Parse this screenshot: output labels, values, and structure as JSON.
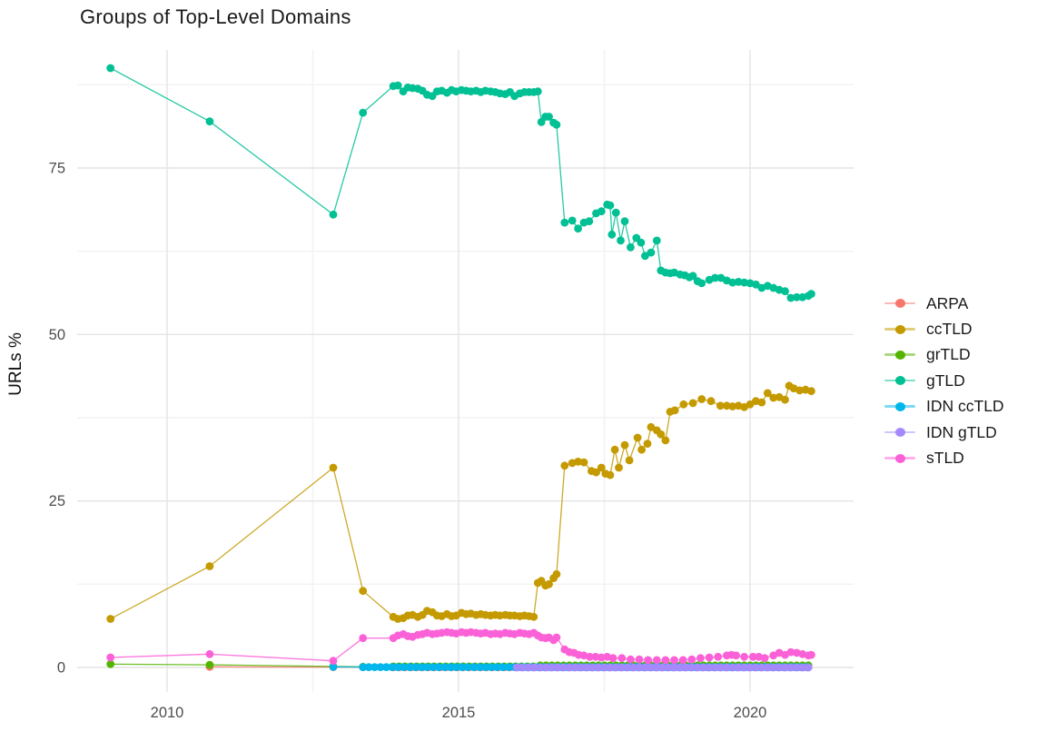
{
  "page": {
    "title": "Groups of Top-Level Domains"
  },
  "chart_data": {
    "type": "line",
    "title": "Groups of Top-Level Domains",
    "xlabel": "",
    "ylabel": "URLs %",
    "xlim": [
      2008.5,
      2021.8
    ],
    "ylim": [
      -3.5,
      92.7
    ],
    "grid": true,
    "legend_position": "right",
    "x_ticks": [
      {
        "value": 2010,
        "label": "2010"
      },
      {
        "value": 2015,
        "label": "2015"
      },
      {
        "value": 2020,
        "label": "2020"
      }
    ],
    "y_ticks": [
      {
        "value": 0,
        "label": "0"
      },
      {
        "value": 25,
        "label": "25"
      },
      {
        "value": 50,
        "label": "50"
      },
      {
        "value": 75,
        "label": "75"
      }
    ],
    "x_minor": [
      2012.5,
      2017.5
    ],
    "y_minor": [
      12.5,
      37.5,
      62.5,
      87.5
    ],
    "series": [
      {
        "name": "ARPA",
        "color": "#F8766D",
        "points": [
          [
            2010.73,
            0.1
          ],
          [
            2012.85,
            0.05
          ],
          [
            2013.36,
            0.05
          ]
        ],
        "runs": [
          {
            "from": 2013.88,
            "to": 2021.05,
            "step": 0.1,
            "y": 0.03
          }
        ]
      },
      {
        "name": "ccTLD",
        "color": "#C49A00",
        "points": [
          [
            2009.03,
            7.3
          ],
          [
            2010.73,
            15.2
          ],
          [
            2012.85,
            30
          ],
          [
            2013.36,
            11.5
          ],
          [
            2013.88,
            7.6
          ],
          [
            2013.96,
            7.3
          ],
          [
            2014.05,
            7.4
          ],
          [
            2014.13,
            7.8
          ],
          [
            2014.21,
            7.9
          ],
          [
            2014.3,
            7.6
          ],
          [
            2014.38,
            7.9
          ],
          [
            2014.46,
            8.5
          ],
          [
            2014.55,
            8.3
          ],
          [
            2014.63,
            7.8
          ],
          [
            2014.71,
            7.7
          ],
          [
            2014.8,
            8
          ],
          [
            2014.88,
            7.7
          ],
          [
            2014.96,
            7.8
          ],
          [
            2015.05,
            8.2
          ],
          [
            2015.13,
            8
          ],
          [
            2015.21,
            8.1
          ],
          [
            2015.3,
            7.9
          ],
          [
            2015.38,
            8
          ],
          [
            2015.46,
            7.9
          ],
          [
            2015.55,
            7.8
          ],
          [
            2015.63,
            7.9
          ],
          [
            2015.71,
            7.8
          ],
          [
            2015.8,
            7.9
          ],
          [
            2015.88,
            7.8
          ],
          [
            2015.96,
            7.8
          ],
          [
            2016.05,
            7.7
          ],
          [
            2016.13,
            7.8
          ],
          [
            2016.21,
            7.7
          ],
          [
            2016.29,
            7.6
          ],
          [
            2016.36,
            12.7
          ],
          [
            2016.42,
            13
          ],
          [
            2016.49,
            12.3
          ],
          [
            2016.55,
            12.5
          ],
          [
            2016.63,
            13.4
          ],
          [
            2016.68,
            14
          ],
          [
            2016.82,
            30.3
          ],
          [
            2016.95,
            30.7
          ],
          [
            2017.05,
            30.9
          ],
          [
            2017.15,
            30.8
          ],
          [
            2017.28,
            29.5
          ],
          [
            2017.36,
            29.3
          ],
          [
            2017.45,
            30
          ],
          [
            2017.52,
            29.1
          ],
          [
            2017.6,
            28.9
          ],
          [
            2017.68,
            32.7
          ],
          [
            2017.75,
            30
          ],
          [
            2017.85,
            33.4
          ],
          [
            2017.93,
            31.1
          ],
          [
            2018.07,
            34.5
          ],
          [
            2018.14,
            32.7
          ],
          [
            2018.24,
            33.6
          ],
          [
            2018.3,
            36.1
          ],
          [
            2018.4,
            35.6
          ],
          [
            2018.47,
            35
          ],
          [
            2018.55,
            34.1
          ],
          [
            2018.63,
            38.4
          ],
          [
            2018.71,
            38.6
          ],
          [
            2018.86,
            39.5
          ],
          [
            2019.02,
            39.7
          ],
          [
            2019.17,
            40.3
          ],
          [
            2019.33,
            40
          ],
          [
            2019.49,
            39.3
          ],
          [
            2019.6,
            39.3
          ],
          [
            2019.7,
            39.2
          ],
          [
            2019.8,
            39.3
          ],
          [
            2019.9,
            39.1
          ],
          [
            2020,
            39.5
          ],
          [
            2020.1,
            40
          ],
          [
            2020.2,
            39.8
          ],
          [
            2020.3,
            41.2
          ],
          [
            2020.4,
            40.5
          ],
          [
            2020.5,
            40.6
          ],
          [
            2020.6,
            40.2
          ],
          [
            2020.67,
            42.3
          ],
          [
            2020.75,
            41.9
          ],
          [
            2020.85,
            41.6
          ],
          [
            2020.95,
            41.7
          ],
          [
            2021.05,
            41.5
          ]
        ],
        "runs": []
      },
      {
        "name": "grTLD",
        "color": "#53B400",
        "points": [
          [
            2009.03,
            0.5
          ],
          [
            2010.73,
            0.4
          ],
          [
            2012.85,
            0.15
          ],
          [
            2013.36,
            0.1
          ]
        ],
        "runs": [
          {
            "from": 2013.88,
            "to": 2016.3,
            "step": 0.1,
            "y": 0.15
          },
          {
            "from": 2016.4,
            "to": 2021.05,
            "step": 0.1,
            "y": 0.3
          }
        ]
      },
      {
        "name": "gTLD",
        "color": "#00C094",
        "points": [
          [
            2009.03,
            90
          ],
          [
            2010.73,
            82
          ],
          [
            2012.85,
            68
          ],
          [
            2013.36,
            83.3
          ],
          [
            2013.88,
            87.3
          ],
          [
            2013.96,
            87.4
          ],
          [
            2014.05,
            86.5
          ],
          [
            2014.13,
            87.1
          ],
          [
            2014.21,
            87
          ],
          [
            2014.3,
            86.9
          ],
          [
            2014.38,
            86.6
          ],
          [
            2014.46,
            86
          ],
          [
            2014.55,
            85.8
          ],
          [
            2014.63,
            86.5
          ],
          [
            2014.71,
            86.6
          ],
          [
            2014.8,
            86.3
          ],
          [
            2014.88,
            86.7
          ],
          [
            2014.96,
            86.5
          ],
          [
            2015.05,
            86.7
          ],
          [
            2015.13,
            86.6
          ],
          [
            2015.21,
            86.5
          ],
          [
            2015.3,
            86.6
          ],
          [
            2015.38,
            86.4
          ],
          [
            2015.46,
            86.6
          ],
          [
            2015.55,
            86.5
          ],
          [
            2015.63,
            86.4
          ],
          [
            2015.71,
            86.2
          ],
          [
            2015.8,
            86.1
          ],
          [
            2015.88,
            86.4
          ],
          [
            2015.96,
            85.8
          ],
          [
            2016.05,
            86.2
          ],
          [
            2016.13,
            86.4
          ],
          [
            2016.21,
            86.4
          ],
          [
            2016.29,
            86.4
          ],
          [
            2016.36,
            86.5
          ],
          [
            2016.42,
            81.9
          ],
          [
            2016.49,
            82.7
          ],
          [
            2016.55,
            82.7
          ],
          [
            2016.63,
            81.8
          ],
          [
            2016.68,
            81.5
          ],
          [
            2016.82,
            66.8
          ],
          [
            2016.95,
            67.1
          ],
          [
            2017.05,
            65.9
          ],
          [
            2017.15,
            66.8
          ],
          [
            2017.24,
            67
          ],
          [
            2017.36,
            68.2
          ],
          [
            2017.45,
            68.5
          ],
          [
            2017.55,
            69.5
          ],
          [
            2017.6,
            69.4
          ],
          [
            2017.63,
            65
          ],
          [
            2017.7,
            68.3
          ],
          [
            2017.78,
            64.1
          ],
          [
            2017.85,
            67
          ],
          [
            2017.95,
            63.1
          ],
          [
            2018.05,
            64.5
          ],
          [
            2018.13,
            63.8
          ],
          [
            2018.2,
            61.8
          ],
          [
            2018.3,
            62.3
          ],
          [
            2018.4,
            64.1
          ],
          [
            2018.47,
            59.6
          ],
          [
            2018.55,
            59.3
          ],
          [
            2018.63,
            59.2
          ],
          [
            2018.7,
            59.3
          ],
          [
            2018.8,
            59
          ],
          [
            2018.88,
            58.9
          ],
          [
            2018.96,
            58.6
          ],
          [
            2019.02,
            58.8
          ],
          [
            2019.1,
            58
          ],
          [
            2019.17,
            57.7
          ],
          [
            2019.3,
            58.2
          ],
          [
            2019.4,
            58.5
          ],
          [
            2019.5,
            58.5
          ],
          [
            2019.6,
            58.1
          ],
          [
            2019.7,
            57.8
          ],
          [
            2019.8,
            57.9
          ],
          [
            2019.9,
            57.8
          ],
          [
            2020,
            57.7
          ],
          [
            2020.1,
            57.5
          ],
          [
            2020.2,
            57
          ],
          [
            2020.3,
            57.3
          ],
          [
            2020.4,
            57
          ],
          [
            2020.5,
            56.7
          ],
          [
            2020.6,
            56.5
          ],
          [
            2020.7,
            55.5
          ],
          [
            2020.8,
            55.6
          ],
          [
            2020.9,
            55.6
          ],
          [
            2021,
            55.8
          ],
          [
            2021.05,
            56.1
          ]
        ],
        "runs": []
      },
      {
        "name": "IDN ccTLD",
        "color": "#00B6EB",
        "points": [
          [
            2012.85,
            0.1
          ]
        ],
        "runs": [
          {
            "from": 2013.36,
            "to": 2021.05,
            "step": 0.1,
            "y": 0.05
          }
        ]
      },
      {
        "name": "IDN gTLD",
        "color": "#A58AFF",
        "points": [],
        "runs": [
          {
            "from": 2016.0,
            "to": 2021.05,
            "step": 0.1,
            "y": 0
          }
        ]
      },
      {
        "name": "sTLD",
        "color": "#FB61D7",
        "points": [
          [
            2009.03,
            1.5
          ],
          [
            2010.73,
            2
          ],
          [
            2012.85,
            1
          ],
          [
            2013.36,
            4.4
          ],
          [
            2013.88,
            4.4
          ],
          [
            2013.96,
            4.8
          ],
          [
            2014.05,
            5
          ],
          [
            2014.13,
            4.7
          ],
          [
            2014.21,
            4.6
          ],
          [
            2014.3,
            4.9
          ],
          [
            2014.38,
            5
          ],
          [
            2014.46,
            5.2
          ],
          [
            2014.55,
            5
          ],
          [
            2014.63,
            5.1
          ],
          [
            2014.71,
            5.2
          ],
          [
            2014.8,
            5.3
          ],
          [
            2014.88,
            5.2
          ],
          [
            2014.96,
            5.1
          ],
          [
            2015.05,
            5.3
          ],
          [
            2015.13,
            5.2
          ],
          [
            2015.21,
            5.3
          ],
          [
            2015.3,
            5.2
          ],
          [
            2015.38,
            5.1
          ],
          [
            2015.46,
            5.2
          ],
          [
            2015.55,
            5
          ],
          [
            2015.63,
            5.1
          ],
          [
            2015.71,
            5
          ],
          [
            2015.8,
            5.2
          ],
          [
            2015.88,
            5.1
          ],
          [
            2015.96,
            5
          ],
          [
            2016.05,
            5.2
          ],
          [
            2016.13,
            5.1
          ],
          [
            2016.21,
            5
          ],
          [
            2016.29,
            5.2
          ],
          [
            2016.36,
            4.8
          ],
          [
            2016.42,
            4.5
          ],
          [
            2016.49,
            4.4
          ],
          [
            2016.55,
            4.5
          ],
          [
            2016.63,
            4.1
          ],
          [
            2016.68,
            4.5
          ],
          [
            2016.82,
            2.7
          ],
          [
            2016.9,
            2.3
          ],
          [
            2016.98,
            2.2
          ],
          [
            2017.06,
            1.9
          ],
          [
            2017.15,
            1.8
          ],
          [
            2017.25,
            1.6
          ],
          [
            2017.35,
            1.6
          ],
          [
            2017.45,
            1.5
          ],
          [
            2017.55,
            1.6
          ],
          [
            2017.65,
            1.4
          ],
          [
            2017.8,
            1.4
          ],
          [
            2017.95,
            1.2
          ],
          [
            2018.1,
            1.2
          ],
          [
            2018.25,
            1.1
          ],
          [
            2018.4,
            1.1
          ],
          [
            2018.55,
            1.1
          ],
          [
            2018.7,
            1.1
          ],
          [
            2018.85,
            1.1
          ],
          [
            2019,
            1.2
          ],
          [
            2019.15,
            1.4
          ],
          [
            2019.3,
            1.5
          ],
          [
            2019.45,
            1.6
          ],
          [
            2019.6,
            1.8
          ],
          [
            2019.68,
            1.9
          ],
          [
            2019.76,
            1.8
          ],
          [
            2019.9,
            1.6
          ],
          [
            2020.05,
            1.6
          ],
          [
            2020.15,
            1.6
          ],
          [
            2020.25,
            1.4
          ],
          [
            2020.4,
            1.8
          ],
          [
            2020.5,
            2.2
          ],
          [
            2020.6,
            1.9
          ],
          [
            2020.7,
            2.3
          ],
          [
            2020.8,
            2.2
          ],
          [
            2020.9,
            2
          ],
          [
            2021,
            1.8
          ],
          [
            2021.05,
            1.9
          ]
        ],
        "runs": []
      }
    ]
  }
}
